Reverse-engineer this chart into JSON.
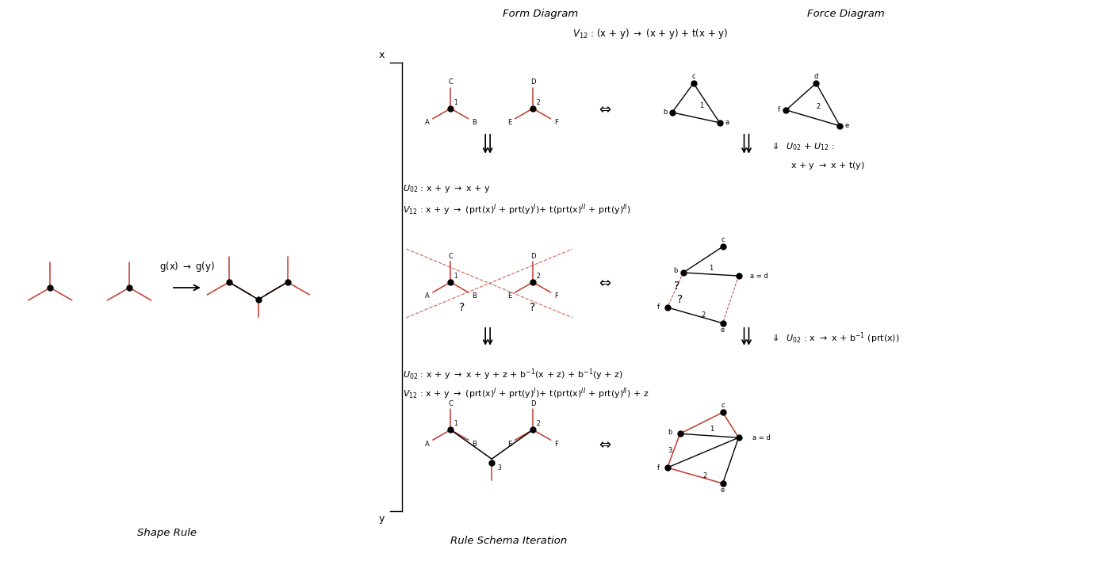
{
  "bg_color": "#ffffff",
  "red_color": "#c0392b",
  "fig_width": 14.0,
  "fig_height": 7.18,
  "title_form": "Form Diagram",
  "title_force": "Force Diagram",
  "title_shape": "Shape Rule",
  "title_rule": "Rule Schema Iteration"
}
